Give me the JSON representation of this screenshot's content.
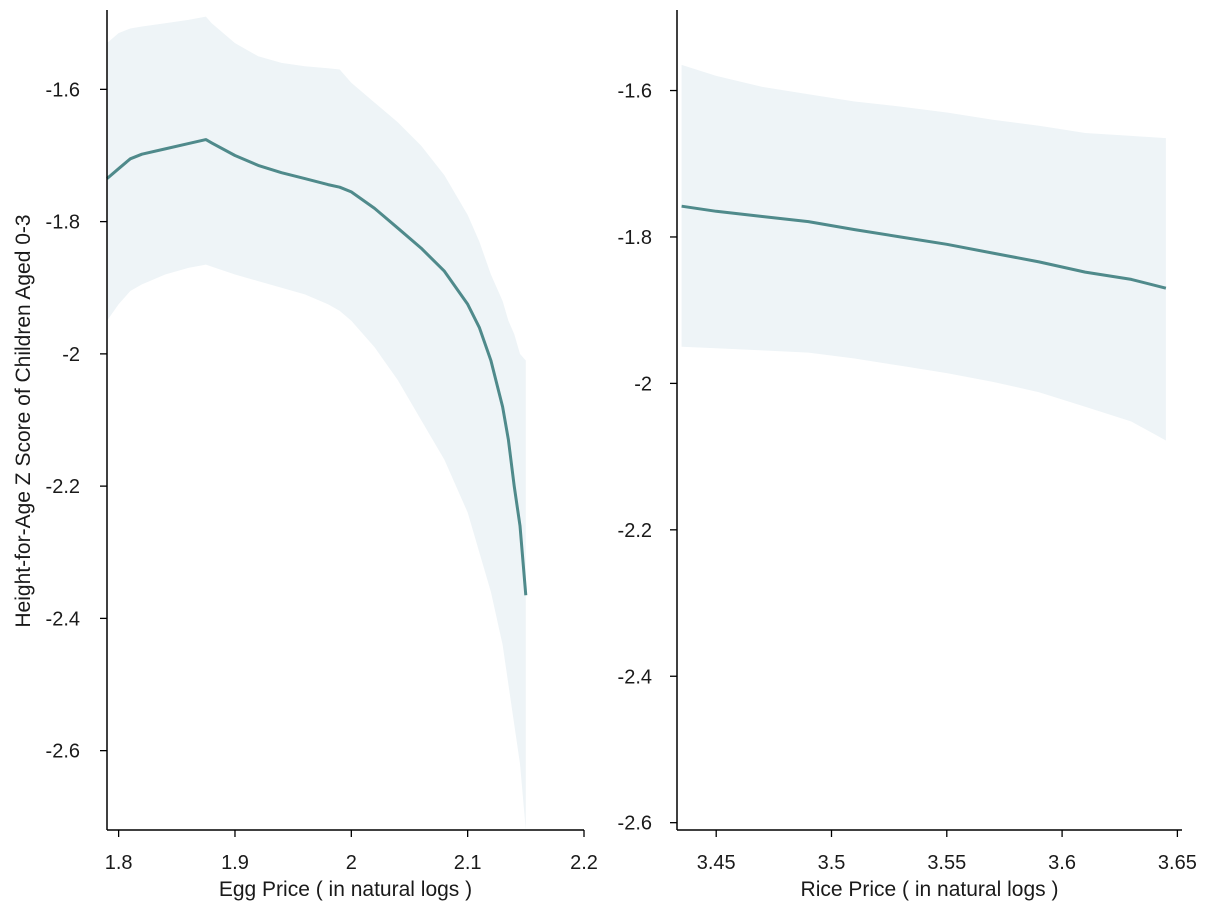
{
  "figure": {
    "ylabel": "Height-for-Age Z Score of Children Aged 0-3"
  },
  "chart_data": [
    {
      "type": "line",
      "xlabel": "Egg Price ( in natural logs )",
      "ylabel": "Height-for-Age Z Score of Children Aged 0-3",
      "xlim": [
        1.79,
        2.2
      ],
      "ylim": [
        -2.72,
        -1.48
      ],
      "x_ticks": [
        1.8,
        1.9,
        2,
        2.1,
        2.2
      ],
      "x_tick_labels": [
        "1.8",
        "1.9",
        "2",
        "2.1",
        "2.2"
      ],
      "y_ticks": [
        -1.6,
        -1.8,
        -2,
        -2.2,
        -2.4,
        -2.6
      ],
      "y_tick_labels": [
        "-1.6",
        "-1.8",
        "-2",
        "-2.2",
        "-2.4",
        "-2.6"
      ],
      "grid": false,
      "line_color": "#4f8a8b",
      "band_color": "#eef4f7",
      "series": [
        {
          "x": [
            1.79,
            1.8,
            1.81,
            1.82,
            1.84,
            1.86,
            1.875,
            1.88,
            1.9,
            1.92,
            1.94,
            1.96,
            1.98,
            1.99,
            2.0,
            2.02,
            2.04,
            2.06,
            2.08,
            2.1,
            2.11,
            2.12,
            2.13,
            2.135,
            2.14,
            2.145,
            2.15
          ],
          "y": [
            -1.735,
            -1.72,
            -1.705,
            -1.698,
            -1.69,
            -1.682,
            -1.676,
            -1.681,
            -1.7,
            -1.715,
            -1.726,
            -1.735,
            -1.744,
            -1.748,
            -1.755,
            -1.78,
            -1.81,
            -1.84,
            -1.875,
            -1.925,
            -1.96,
            -2.01,
            -2.08,
            -2.13,
            -2.2,
            -2.26,
            -2.365
          ],
          "upper": [
            -1.53,
            -1.515,
            -1.508,
            -1.505,
            -1.5,
            -1.495,
            -1.49,
            -1.5,
            -1.53,
            -1.55,
            -1.56,
            -1.565,
            -1.568,
            -1.57,
            -1.59,
            -1.62,
            -1.65,
            -1.685,
            -1.73,
            -1.79,
            -1.83,
            -1.88,
            -1.92,
            -1.95,
            -1.97,
            -2.0,
            -2.01
          ],
          "lower": [
            -1.95,
            -1.925,
            -1.905,
            -1.895,
            -1.88,
            -1.87,
            -1.865,
            -1.868,
            -1.88,
            -1.89,
            -1.9,
            -1.91,
            -1.925,
            -1.935,
            -1.95,
            -1.99,
            -2.04,
            -2.1,
            -2.16,
            -2.24,
            -2.3,
            -2.36,
            -2.44,
            -2.5,
            -2.56,
            -2.62,
            -2.72
          ]
        }
      ]
    },
    {
      "type": "line",
      "xlabel": "Rice Price ( in natural logs )",
      "ylabel": "",
      "xlim": [
        3.433,
        3.652
      ],
      "ylim": [
        -2.61,
        -1.49
      ],
      "x_ticks": [
        3.45,
        3.5,
        3.55,
        3.6,
        3.65
      ],
      "x_tick_labels": [
        "3.45",
        "3.5",
        "3.55",
        "3.6",
        "3.65"
      ],
      "y_ticks": [
        -1.6,
        -1.8,
        -2,
        -2.2,
        -2.4,
        -2.6
      ],
      "y_tick_labels": [
        "-1.6",
        "-1.8",
        "-2",
        "-2.2",
        "-2.4",
        "-2.6"
      ],
      "grid": false,
      "line_color": "#4f8a8b",
      "band_color": "#eef4f7",
      "series": [
        {
          "x": [
            3.435,
            3.45,
            3.47,
            3.49,
            3.51,
            3.53,
            3.55,
            3.57,
            3.59,
            3.61,
            3.63,
            3.645
          ],
          "y": [
            -1.758,
            -1.765,
            -1.772,
            -1.779,
            -1.79,
            -1.8,
            -1.81,
            -1.822,
            -1.834,
            -1.848,
            -1.858,
            -1.87
          ],
          "upper": [
            -1.565,
            -1.58,
            -1.595,
            -1.605,
            -1.615,
            -1.622,
            -1.63,
            -1.64,
            -1.648,
            -1.658,
            -1.662,
            -1.665
          ],
          "lower": [
            -1.95,
            -1.952,
            -1.955,
            -1.958,
            -1.966,
            -1.976,
            -1.986,
            -1.998,
            -2.012,
            -2.032,
            -2.052,
            -2.078
          ]
        }
      ]
    }
  ]
}
